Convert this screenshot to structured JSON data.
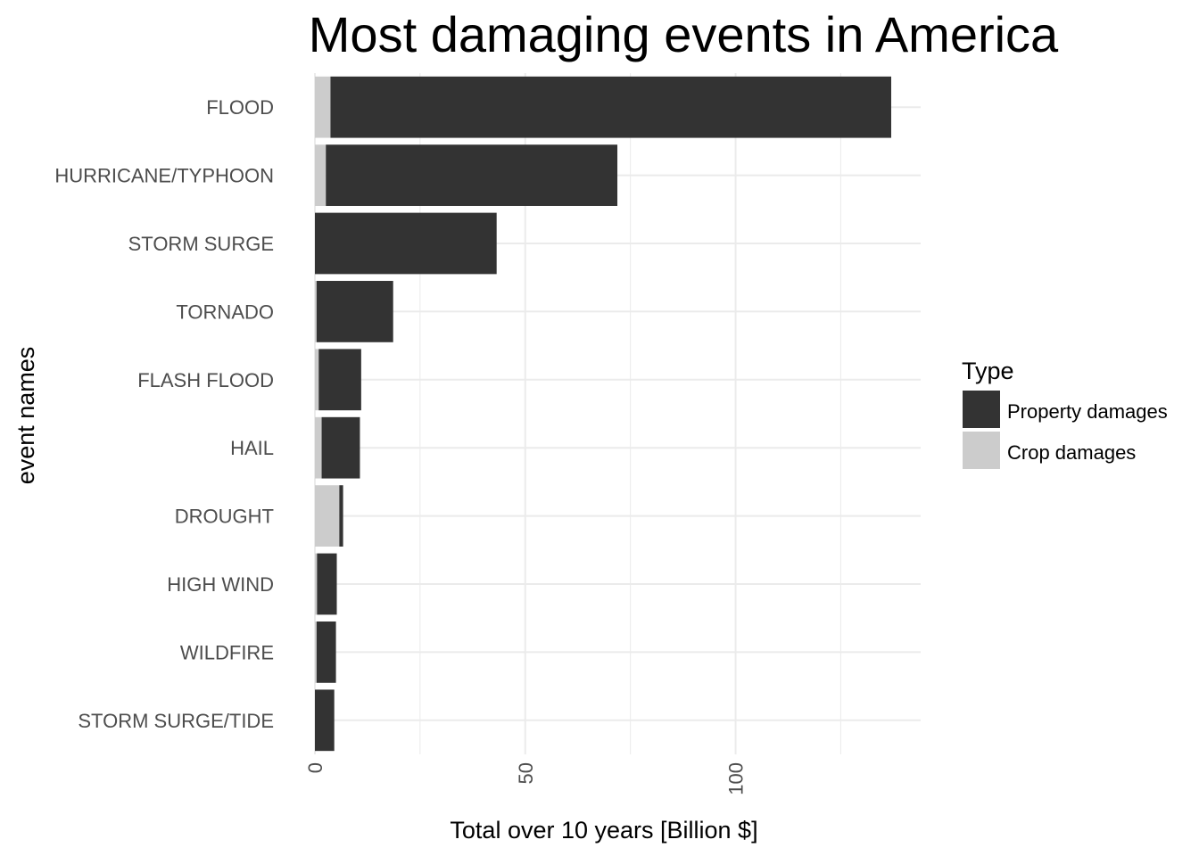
{
  "chart_data": {
    "type": "bar",
    "orientation": "horizontal",
    "stacked": true,
    "title": "Most damaging events in America",
    "xlabel": "Total over 10 years [Billion $]",
    "ylabel": "event names",
    "xlim": [
      0,
      144
    ],
    "x_ticks": [
      0,
      50,
      100
    ],
    "x_minor_ticks": [
      25,
      75,
      125
    ],
    "categories": [
      "FLOOD",
      "HURRICANE/TYPHOON",
      "STORM SURGE",
      "TORNADO",
      "FLASH FLOOD",
      "HAIL",
      "DROUGHT",
      "HIGH WIND",
      "WILDFIRE",
      "STORM SURGE/TIDE"
    ],
    "series": [
      {
        "name": "Crop damages",
        "color": "#cccccc",
        "values": [
          3.7,
          2.6,
          0.0,
          0.4,
          0.9,
          1.6,
          5.8,
          0.5,
          0.4,
          0.0
        ]
      },
      {
        "name": "Property damages",
        "color": "#333333",
        "values": [
          133.3,
          69.3,
          43.2,
          18.2,
          10.1,
          9.1,
          0.9,
          4.7,
          4.6,
          4.6
        ]
      }
    ],
    "grid": true,
    "legend": {
      "title": "Type",
      "placement": "right",
      "items": [
        {
          "label": "Property damages",
          "color": "#333333"
        },
        {
          "label": "Crop damages",
          "color": "#cccccc"
        }
      ]
    }
  }
}
